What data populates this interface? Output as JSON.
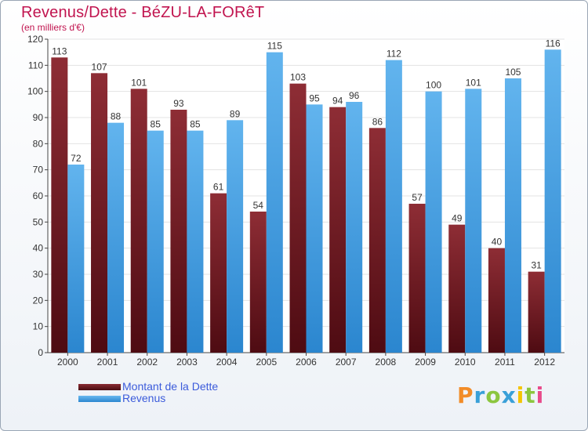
{
  "header": {
    "title": "Revenus/Dette - BéZU-LA-FORêT",
    "subtitle": "(en milliers d'€)"
  },
  "chart_data": {
    "type": "bar",
    "title": "Revenus/Dette - BéZU-LA-FORêT",
    "ylabel": "(en milliers d'€)",
    "xlabel": "",
    "ylim": [
      0,
      120
    ],
    "yticks": [
      0,
      10,
      20,
      30,
      40,
      50,
      60,
      70,
      80,
      90,
      100,
      110,
      120
    ],
    "grid": true,
    "legend": "bottom-left",
    "categories": [
      "2000",
      "2001",
      "2002",
      "2003",
      "2004",
      "2005",
      "2006",
      "2007",
      "2008",
      "2009",
      "2010",
      "2011",
      "2012"
    ],
    "series": [
      {
        "name": "Montant de la Dette",
        "color": "#7a1f26",
        "values": [
          113,
          107,
          101,
          93,
          61,
          54,
          103,
          94,
          86,
          57,
          49,
          40,
          31
        ]
      },
      {
        "name": "Revenus",
        "color": "#3d9be0",
        "values": [
          72,
          88,
          85,
          85,
          89,
          115,
          95,
          96,
          112,
          100,
          101,
          105,
          116
        ]
      }
    ]
  },
  "logo": {
    "letters": [
      "P",
      "r",
      "o",
      "x",
      "i",
      "t",
      "i"
    ],
    "colors": [
      "#f28c28",
      "#3aa0d8",
      "#8cc63f",
      "#3aa0d8",
      "#f5c400",
      "#8cc63f",
      "#e84a8a"
    ]
  }
}
